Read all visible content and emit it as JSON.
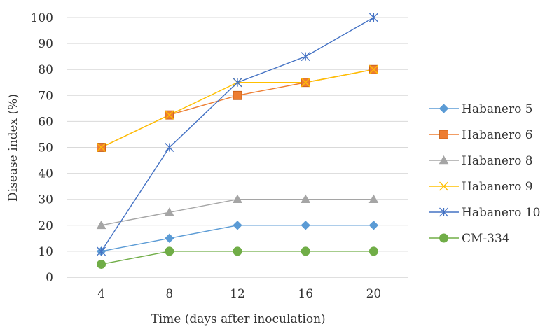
{
  "chart_data": {
    "type": "line",
    "title": "",
    "xlabel": "Time (days after inoculation)",
    "ylabel": "Disease index (%)",
    "x": [
      4,
      8,
      12,
      16,
      20
    ],
    "x_tick_labels": [
      "4",
      "8",
      "12",
      "16",
      "20"
    ],
    "ylim": [
      0,
      100
    ],
    "y_ticks": [
      0,
      10,
      20,
      30,
      40,
      50,
      60,
      70,
      80,
      90,
      100
    ],
    "grid": "horizontal",
    "legend_position": "right",
    "series": [
      {
        "name": "Habanero 5",
        "values": [
          10,
          15,
          20,
          20,
          20
        ],
        "color": "#5b9bd5",
        "marker": "diamond"
      },
      {
        "name": "Habanero 6",
        "values": [
          50,
          62.5,
          70,
          75,
          80
        ],
        "color": "#ed7d31",
        "marker": "square"
      },
      {
        "name": "Habanero 8",
        "values": [
          20,
          25,
          30,
          30,
          30
        ],
        "color": "#a5a5a5",
        "marker": "triangle"
      },
      {
        "name": "Habanero 9",
        "values": [
          50,
          62.5,
          75,
          75,
          80
        ],
        "color": "#ffc000",
        "marker": "x"
      },
      {
        "name": "Habanero 10",
        "values": [
          10,
          50,
          75,
          85,
          100
        ],
        "color": "#4472c4",
        "marker": "star"
      },
      {
        "name": "CM-334",
        "values": [
          5,
          10,
          10,
          10,
          10
        ],
        "color": "#70ad47",
        "marker": "circle"
      }
    ]
  }
}
